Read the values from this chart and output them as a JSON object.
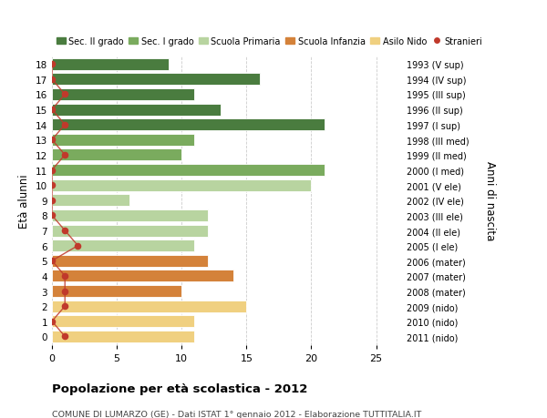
{
  "ages": [
    18,
    17,
    16,
    15,
    14,
    13,
    12,
    11,
    10,
    9,
    8,
    7,
    6,
    5,
    4,
    3,
    2,
    1,
    0
  ],
  "years": [
    "1993 (V sup)",
    "1994 (IV sup)",
    "1995 (III sup)",
    "1996 (II sup)",
    "1997 (I sup)",
    "1998 (III med)",
    "1999 (II med)",
    "2000 (I med)",
    "2001 (V ele)",
    "2002 (IV ele)",
    "2003 (III ele)",
    "2004 (II ele)",
    "2005 (I ele)",
    "2006 (mater)",
    "2007 (mater)",
    "2008 (mater)",
    "2009 (nido)",
    "2010 (nido)",
    "2011 (nido)"
  ],
  "bar_values": [
    9,
    16,
    11,
    13,
    21,
    11,
    10,
    21,
    20,
    6,
    12,
    12,
    11,
    12,
    14,
    10,
    15,
    11,
    11
  ],
  "stranieri": [
    0,
    0,
    1,
    0,
    1,
    0,
    1,
    0,
    0,
    0,
    0,
    1,
    2,
    0,
    1,
    1,
    1,
    0,
    1
  ],
  "bar_colors": [
    "#4a7c3f",
    "#4a7c3f",
    "#4a7c3f",
    "#4a7c3f",
    "#4a7c3f",
    "#7aab5e",
    "#7aab5e",
    "#7aab5e",
    "#b8d4a0",
    "#b8d4a0",
    "#b8d4a0",
    "#b8d4a0",
    "#b8d4a0",
    "#d4823a",
    "#d4823a",
    "#d4823a",
    "#f0d080",
    "#f0d080",
    "#f0d080"
  ],
  "legend_labels": [
    "Sec. II grado",
    "Sec. I grado",
    "Scuola Primaria",
    "Scuola Infanzia",
    "Asilo Nido",
    "Stranieri"
  ],
  "legend_colors": [
    "#4a7c3f",
    "#7aab5e",
    "#b8d4a0",
    "#d4823a",
    "#f0d080",
    "#c0392b"
  ],
  "title": "Popolazione per età scolastica - 2012",
  "subtitle": "COMUNE DI LUMARZO (GE) - Dati ISTAT 1° gennaio 2012 - Elaborazione TUTTITALIA.IT",
  "ylabel_left": "Età alunni",
  "ylabel_right": "Anni di nascita",
  "xlim": [
    0,
    27
  ],
  "stranieri_color": "#c0392b",
  "bg_color": "#ffffff",
  "grid_color": "#cccccc"
}
